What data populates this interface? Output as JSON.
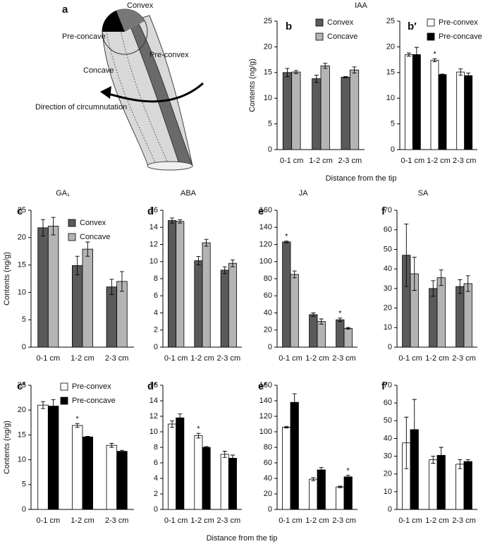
{
  "diagram": {
    "panel": "a",
    "labels": [
      "Convex",
      "Pre-concave",
      "Concave",
      "Pre-convex"
    ],
    "arrow_label": "Direction of circumnutation"
  },
  "chart_data": [
    {
      "type": "bar",
      "panel": "b",
      "title": "IAA",
      "ylabel": "Contents (ng/g)",
      "xlabel": "Distance from the tip",
      "legend": "upper right",
      "categories": [
        "0-1 cm",
        "1-2 cm",
        "2-3 cm"
      ],
      "ylim": [
        0,
        25
      ],
      "yticks": [
        0,
        5,
        10,
        15,
        20,
        25
      ],
      "series": [
        {
          "name": "Convex",
          "color": "#5a5a5a",
          "values": [
            15.0,
            13.8,
            14.1
          ],
          "errors": [
            0.8,
            0.7,
            0.1
          ]
        },
        {
          "name": "Concave",
          "color": "#b4b4b4",
          "values": [
            15.1,
            16.3,
            15.5
          ],
          "errors": [
            0.3,
            0.5,
            0.6
          ]
        }
      ]
    },
    {
      "type": "bar",
      "panel": "b′",
      "legend": "upper right",
      "categories": [
        "0-1 cm",
        "1-2 cm",
        "2-3 cm"
      ],
      "ylim": [
        0,
        25
      ],
      "yticks": [
        0,
        5,
        10,
        15,
        20,
        25
      ],
      "series": [
        {
          "name": "Pre-convex",
          "color": "#ffffff",
          "values": [
            18.5,
            17.4,
            15.1
          ],
          "errors": [
            0.3,
            0.3,
            0.6
          ]
        },
        {
          "name": "Pre-concave",
          "color": "#000000",
          "values": [
            18.5,
            14.6,
            14.4
          ],
          "errors": [
            1.4,
            0.1,
            0.5
          ]
        }
      ],
      "annotations": [
        {
          "text": "*",
          "category": "1-2 cm",
          "series": "Pre-convex"
        }
      ]
    },
    {
      "type": "bar",
      "panel": "c",
      "title": "GA₁",
      "ylabel": "Contents (ng/g)",
      "legend": "upper right",
      "categories": [
        "0-1 cm",
        "1-2 cm",
        "2-3 cm"
      ],
      "ylim": [
        0,
        25
      ],
      "yticks": [
        0,
        5,
        10,
        15,
        20,
        25
      ],
      "series": [
        {
          "name": "Convex",
          "color": "#5a5a5a",
          "values": [
            21.8,
            14.9,
            11.0
          ],
          "errors": [
            1.5,
            1.7,
            1.4
          ]
        },
        {
          "name": "Concave",
          "color": "#b4b4b4",
          "values": [
            22.1,
            17.9,
            12.0
          ],
          "errors": [
            1.6,
            1.3,
            1.8
          ]
        }
      ]
    },
    {
      "type": "bar",
      "panel": "d",
      "title": "ABA",
      "categories": [
        "0-1 cm",
        "1-2 cm",
        "2-3 cm"
      ],
      "ylim": [
        0,
        16
      ],
      "yticks": [
        0,
        2,
        4,
        6,
        8,
        10,
        12,
        14,
        16
      ],
      "series": [
        {
          "color": "#5a5a5a",
          "values": [
            14.8,
            10.1,
            9.0
          ],
          "errors": [
            0.3,
            0.5,
            0.4
          ]
        },
        {
          "color": "#b4b4b4",
          "values": [
            14.7,
            12.2,
            9.8
          ],
          "errors": [
            0.2,
            0.4,
            0.4
          ]
        }
      ]
    },
    {
      "type": "bar",
      "panel": "e",
      "title": "JA",
      "categories": [
        "0-1 cm",
        "1-2 cm",
        "2-3 cm"
      ],
      "ylim": [
        0,
        160
      ],
      "yticks": [
        0,
        20,
        40,
        60,
        80,
        100,
        120,
        140,
        160
      ],
      "series": [
        {
          "color": "#5a5a5a",
          "values": [
            123,
            38,
            32
          ],
          "errors": [
            1,
            2,
            2
          ]
        },
        {
          "color": "#b4b4b4",
          "values": [
            85,
            30,
            22
          ],
          "errors": [
            4,
            3,
            1
          ]
        }
      ],
      "annotations": [
        {
          "text": "*",
          "category": "0-1 cm",
          "series": 0
        },
        {
          "text": "*",
          "category": "2-3 cm",
          "series": 0
        }
      ]
    },
    {
      "type": "bar",
      "panel": "f",
      "title": "SA",
      "categories": [
        "0-1 cm",
        "1-2 cm",
        "2-3 cm"
      ],
      "ylim": [
        0,
        70
      ],
      "yticks": [
        0,
        10,
        20,
        30,
        40,
        50,
        60,
        70
      ],
      "series": [
        {
          "color": "#5a5a5a",
          "values": [
            47,
            30,
            31
          ],
          "errors": [
            16,
            4,
            3.5
          ]
        },
        {
          "color": "#b4b4b4",
          "values": [
            37.5,
            35.5,
            32.5
          ],
          "errors": [
            8.5,
            4,
            4
          ]
        }
      ]
    },
    {
      "type": "bar",
      "panel": "c′",
      "ylabel": "Contents (ng/g)",
      "legend": "upper right",
      "categories": [
        "0-1 cm",
        "1-2 cm",
        "2-3 cm"
      ],
      "ylim": [
        0,
        25
      ],
      "yticks": [
        0,
        5,
        10,
        15,
        20,
        25
      ],
      "series": [
        {
          "name": "Pre-convex",
          "color": "#ffffff",
          "values": [
            21.0,
            16.9,
            12.9
          ],
          "errors": [
            0.7,
            0.4,
            0.4
          ]
        },
        {
          "name": "Pre-concave",
          "color": "#000000",
          "values": [
            20.8,
            14.6,
            11.7
          ],
          "errors": [
            1.3,
            0.1,
            0.2
          ]
        }
      ],
      "annotations": [
        {
          "text": "*",
          "category": "1-2 cm",
          "series": "Pre-convex"
        }
      ]
    },
    {
      "type": "bar",
      "panel": "d′",
      "xlabel": "Distance from the tip",
      "categories": [
        "0-1 cm",
        "1-2 cm",
        "2-3 cm"
      ],
      "ylim": [
        0,
        16
      ],
      "yticks": [
        0,
        2,
        4,
        6,
        8,
        10,
        12,
        14,
        16
      ],
      "series": [
        {
          "color": "#ffffff",
          "values": [
            11.0,
            9.5,
            7.1
          ],
          "errors": [
            0.4,
            0.3,
            0.4
          ]
        },
        {
          "color": "#000000",
          "values": [
            11.8,
            8.0,
            6.6
          ],
          "errors": [
            0.5,
            0.1,
            0.4
          ]
        }
      ],
      "annotations": [
        {
          "text": "*",
          "category": "1-2 cm",
          "series": 0
        }
      ]
    },
    {
      "type": "bar",
      "panel": "e′",
      "categories": [
        "0-1 cm",
        "1-2 cm",
        "2-3 cm"
      ],
      "ylim": [
        0,
        160
      ],
      "yticks": [
        0,
        20,
        40,
        60,
        80,
        100,
        120,
        140,
        160
      ],
      "series": [
        {
          "color": "#ffffff",
          "values": [
            106,
            39,
            29
          ],
          "errors": [
            1,
            2,
            1
          ]
        },
        {
          "color": "#000000",
          "values": [
            138,
            51,
            42
          ],
          "errors": [
            11,
            3,
            2
          ]
        }
      ],
      "annotations": [
        {
          "text": "*",
          "category": "2-3 cm",
          "series": 1
        }
      ]
    },
    {
      "type": "bar",
      "panel": "f′",
      "categories": [
        "0-1 cm",
        "1-2 cm",
        "2-3 cm"
      ],
      "ylim": [
        0,
        70
      ],
      "yticks": [
        0,
        10,
        20,
        30,
        40,
        50,
        60,
        70
      ],
      "series": [
        {
          "color": "#ffffff",
          "values": [
            37.5,
            28,
            25.5
          ],
          "errors": [
            14.5,
            2,
            2.5
          ]
        },
        {
          "color": "#000000",
          "values": [
            45,
            30.5,
            27
          ],
          "errors": [
            17,
            4.5,
            1
          ]
        }
      ]
    }
  ]
}
